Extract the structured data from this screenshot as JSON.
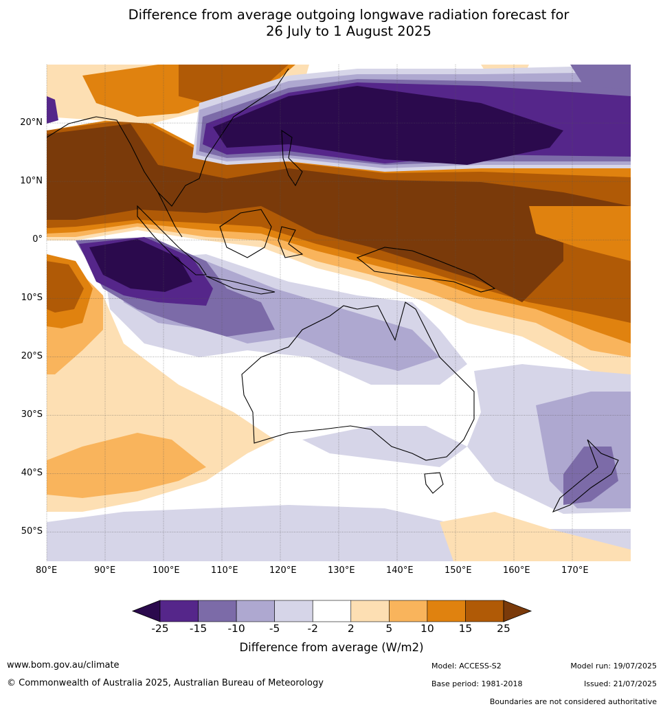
{
  "title": {
    "line1": "Difference from average outgoing longwave radiation forecast for",
    "line2": "26 July to 1 August 2025"
  },
  "map": {
    "lon_range": [
      80,
      180
    ],
    "lat_range": [
      -55,
      30
    ],
    "lat_labels": [
      "20°N",
      "10°N",
      "0°",
      "10°S",
      "20°S",
      "30°S",
      "40°S",
      "50°S"
    ],
    "lon_labels": [
      "80°E",
      "90°E",
      "100°E",
      "110°E",
      "120°E",
      "130°E",
      "140°E",
      "150°E",
      "160°E",
      "170°E"
    ],
    "gridlines": true,
    "coastlines": true
  },
  "colorbar": {
    "tick_labels": [
      "-25",
      "-15",
      "-10",
      "-5",
      "-2",
      "2",
      "5",
      "10",
      "15",
      "25"
    ],
    "colors": [
      "#2b0a4d",
      "#55268a",
      "#7c6ba8",
      "#aea8d0",
      "#d6d5e8",
      "#ffffff",
      "#fddfb3",
      "#f9b45c",
      "#e0820f",
      "#b05a06",
      "#7a3a0a"
    ],
    "extend": "both",
    "label": "Difference from average (W/m2)"
  },
  "footer": {
    "website": "www.bom.gov.au/climate",
    "copyright": "© Commonwealth of Australia 2025, Australian Bureau of Meteorology",
    "model": "Model: ACCESS-S2",
    "base_period": "Base period: 1981-2018",
    "model_run": "Model run: 19/07/2025",
    "issued": "Issued: 21/07/2025",
    "disclaimer": "Boundaries are not considered authoritative"
  }
}
